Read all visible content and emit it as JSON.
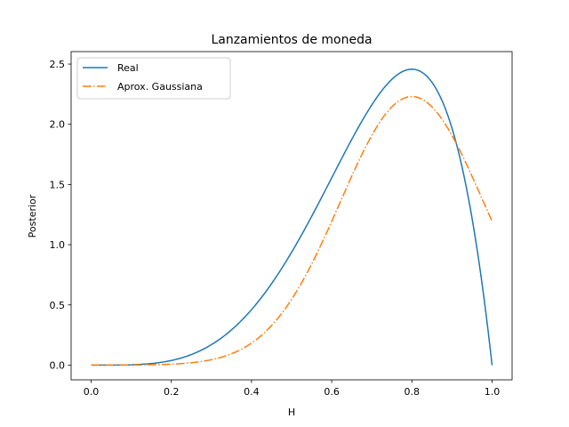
{
  "chart_data": {
    "type": "line",
    "title": "Lanzamientos de moneda",
    "xlabel": "H",
    "ylabel": "Posterior",
    "xlim": [
      -0.05,
      1.05
    ],
    "ylim": [
      -0.1224,
      2.6037
    ],
    "x_ticks": [
      0.0,
      0.2,
      0.4,
      0.6,
      0.8,
      1.0
    ],
    "x_tick_labels": [
      "0.0",
      "0.2",
      "0.4",
      "0.6",
      "0.8",
      "1.0"
    ],
    "y_ticks": [
      0.0,
      0.5,
      1.0,
      1.5,
      2.0,
      2.5
    ],
    "y_tick_labels": [
      "0.0",
      "0.5",
      "1.0",
      "1.5",
      "2.0",
      "2.5"
    ],
    "grid": false,
    "legend_position": "top-left",
    "series": [
      {
        "name": "Real",
        "color": "#1f77b4",
        "style": "solid",
        "formula": "beta(5,2) density",
        "x": [
          0.0,
          0.05,
          0.1,
          0.15,
          0.2,
          0.25,
          0.3,
          0.35,
          0.4,
          0.45,
          0.5,
          0.55,
          0.6,
          0.65,
          0.7,
          0.75,
          0.8,
          0.85,
          0.9,
          0.95,
          1.0
        ],
        "values": [
          0.0,
          0.0002,
          0.0027,
          0.0127,
          0.0384,
          0.0879,
          0.1701,
          0.2926,
          0.4608,
          0.6766,
          0.9375,
          1.2353,
          1.5552,
          1.8743,
          2.1609,
          2.373,
          2.4576,
          2.3487,
          1.9683,
          1.1401,
          0.0
        ]
      },
      {
        "name": "Aprox. Gaussiana",
        "color": "#ff7f0e",
        "style": "dashdot",
        "formula": "normal(mean 0.8, sd 0.17889)",
        "x": [
          0.0,
          0.05,
          0.1,
          0.15,
          0.2,
          0.25,
          0.3,
          0.35,
          0.4,
          0.45,
          0.5,
          0.55,
          0.6,
          0.65,
          0.7,
          0.75,
          0.8,
          0.85,
          0.9,
          0.95,
          1.0
        ],
        "values": [
          0.0001,
          0.0003,
          0.0011,
          0.003,
          0.0083,
          0.02,
          0.0449,
          0.0928,
          0.1787,
          0.319,
          0.5275,
          0.8087,
          1.15,
          1.5191,
          1.864,
          2.1175,
          2.2302,
          2.1175,
          1.864,
          1.5191,
          1.15
        ]
      }
    ]
  }
}
